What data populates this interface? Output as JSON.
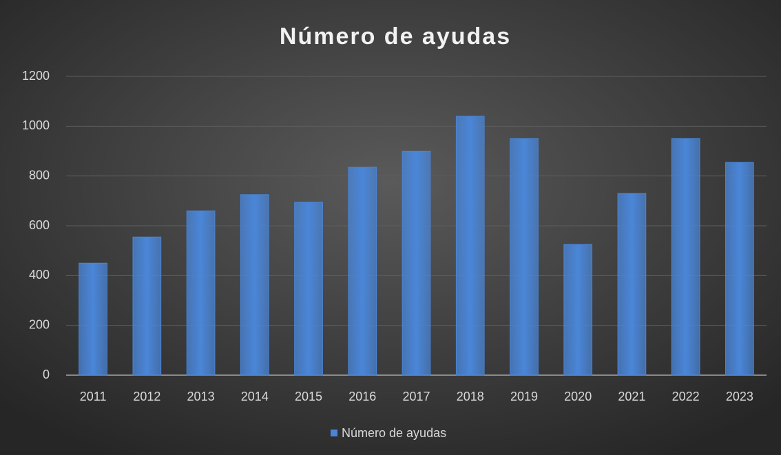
{
  "chart_data": {
    "type": "bar",
    "title": "Número de ayudas",
    "categories": [
      "2011",
      "2012",
      "2013",
      "2014",
      "2015",
      "2016",
      "2017",
      "2018",
      "2019",
      "2020",
      "2021",
      "2022",
      "2023"
    ],
    "series": [
      {
        "name": "Número de ayudas",
        "color": "#4a86d8",
        "values": [
          450,
          555,
          660,
          725,
          695,
          835,
          900,
          1040,
          950,
          525,
          730,
          950,
          855
        ]
      }
    ],
    "ylim": [
      0,
      1200
    ],
    "yticks": [
      0,
      200,
      400,
      600,
      800,
      1000,
      1200
    ],
    "grid": true,
    "legend": "bottom"
  }
}
